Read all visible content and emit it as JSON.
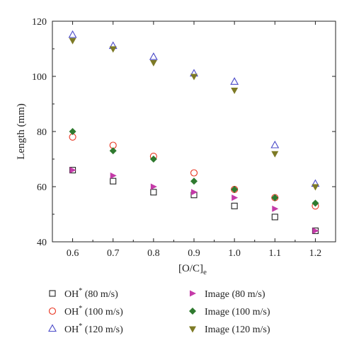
{
  "chart_data": {
    "type": "scatter",
    "title": "",
    "xlabel": "[O/C]",
    "xlabel_sub": "e",
    "ylabel": "Length (mm)",
    "xlim": [
      0.55,
      1.25
    ],
    "ylim": [
      40,
      120
    ],
    "x_ticks": [
      "0.6",
      "0.7",
      "0.8",
      "0.9",
      "1.0",
      "1.1",
      "1.2"
    ],
    "y_ticks": [
      "40",
      "60",
      "80",
      "100",
      "120"
    ],
    "grid": false,
    "legend_position": "bottom",
    "x": [
      0.6,
      0.7,
      0.8,
      0.9,
      1.0,
      1.1,
      1.2
    ],
    "series": [
      {
        "name": "OH* (80 m/s)",
        "legend_base": "OH",
        "legend_sup": "*",
        "legend_rest": " (80 m/s)",
        "marker": "square-open",
        "color": "#222222",
        "values": [
          66,
          62,
          58,
          57,
          53,
          49,
          44
        ]
      },
      {
        "name": "OH* (100 m/s)",
        "legend_base": "OH",
        "legend_sup": "*",
        "legend_rest": " (100 m/s)",
        "marker": "circle-open",
        "color": "#e8331f",
        "values": [
          78,
          75,
          71,
          65,
          59,
          56,
          53
        ]
      },
      {
        "name": "OH* (120 m/s)",
        "legend_base": "OH",
        "legend_sup": "*",
        "legend_rest": " (120 m/s)",
        "marker": "triangle-up-open",
        "color": "#4a4ac8",
        "values": [
          115,
          111,
          107,
          101,
          98,
          75,
          61
        ]
      },
      {
        "name": "Image (80 m/s)",
        "legend_base": "Image (80 m/s)",
        "legend_sup": "",
        "legend_rest": "",
        "marker": "triangle-right",
        "color": "#c43aa8",
        "values": [
          66,
          64,
          60,
          58,
          56,
          52,
          44
        ]
      },
      {
        "name": "Image (100 m/s)",
        "legend_base": "Image (100 m/s)",
        "legend_sup": "",
        "legend_rest": "",
        "marker": "diamond",
        "color": "#2f7a2f",
        "values": [
          80,
          73,
          70,
          62,
          59,
          56,
          54
        ]
      },
      {
        "name": "Image (120 m/s)",
        "legend_base": "Image (120 m/s)",
        "legend_sup": "",
        "legend_rest": "",
        "marker": "triangle-down",
        "color": "#7d7a25",
        "values": [
          113,
          110,
          105,
          100,
          95,
          72,
          60
        ]
      }
    ]
  }
}
